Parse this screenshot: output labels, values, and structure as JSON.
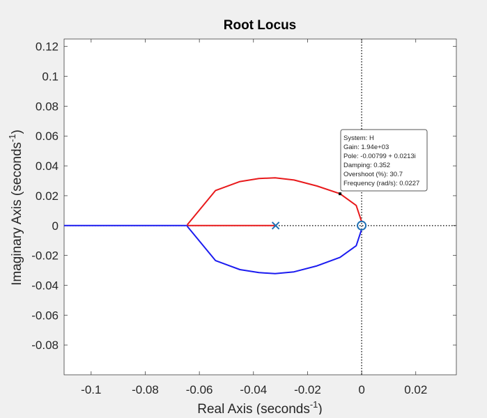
{
  "chart_data": {
    "type": "line",
    "title": "Root Locus",
    "xlabel": {
      "text": "Real Axis (seconds",
      "sup": "-1",
      "tail": ")"
    },
    "ylabel": {
      "text": "Imaginary Axis (seconds",
      "sup": "-1",
      "tail": ")"
    },
    "xlim": [
      -0.11,
      0.035
    ],
    "ylim": [
      -0.1,
      0.125
    ],
    "xticks": [
      -0.1,
      -0.08,
      -0.06,
      -0.04,
      -0.02,
      0,
      0.02
    ],
    "xtick_labels": [
      "-0.1",
      "-0.08",
      "-0.06",
      "-0.04",
      "-0.02",
      "0",
      "0.02"
    ],
    "yticks": [
      0.12,
      0.1,
      0.08,
      0.06,
      0.04,
      0.02,
      0,
      -0.02,
      -0.04,
      -0.06,
      -0.08
    ],
    "ytick_labels": [
      "0.12",
      "0.1",
      "0.08",
      "0.06",
      "0.04",
      "0.02",
      "0",
      "-0.02",
      "-0.04",
      "-0.06",
      "-0.08"
    ],
    "grid": false,
    "colors": {
      "red": "#e8191b",
      "blue": "#1b1bf0",
      "marker": "#1f6fb2"
    },
    "series": [
      {
        "color": "red",
        "points": [
          [
            -0.0318,
            0
          ],
          [
            -0.0645,
            0
          ]
        ]
      },
      {
        "color": "red",
        "points": [
          [
            -0.0645,
            0.0005
          ],
          [
            -0.054,
            0.0235
          ],
          [
            -0.045,
            0.0295
          ],
          [
            -0.038,
            0.0315
          ],
          [
            -0.032,
            0.032
          ],
          [
            -0.025,
            0.0305
          ],
          [
            -0.0165,
            0.0265
          ],
          [
            -0.008,
            0.0213
          ],
          [
            -0.002,
            0.0135
          ],
          [
            0,
            0.0025
          ]
        ]
      },
      {
        "color": "blue",
        "points": [
          [
            -0.0645,
            -0.0005
          ],
          [
            -0.054,
            -0.0235
          ],
          [
            -0.045,
            -0.0295
          ],
          [
            -0.038,
            -0.0315
          ],
          [
            -0.032,
            -0.0322
          ],
          [
            -0.025,
            -0.031
          ],
          [
            -0.0165,
            -0.027
          ],
          [
            -0.008,
            -0.0213
          ],
          [
            -0.002,
            -0.0135
          ],
          [
            0,
            -0.0025
          ]
        ]
      },
      {
        "color": "blue",
        "points": [
          [
            -0.0645,
            0
          ],
          [
            -0.11,
            0
          ]
        ]
      }
    ],
    "poles": [
      [
        -0.0318,
        0
      ]
    ],
    "zeros": [
      [
        0,
        0
      ]
    ],
    "datatip": {
      "point": [
        -0.00799,
        0.0213
      ],
      "lines": [
        "System: H",
        "Gain: 1.94e+03",
        "Pole: -0.00799 + 0.0213i",
        "Damping: 0.352",
        "Overshoot (%): 30.7",
        "Frequency (rad/s): 0.0227"
      ]
    }
  }
}
